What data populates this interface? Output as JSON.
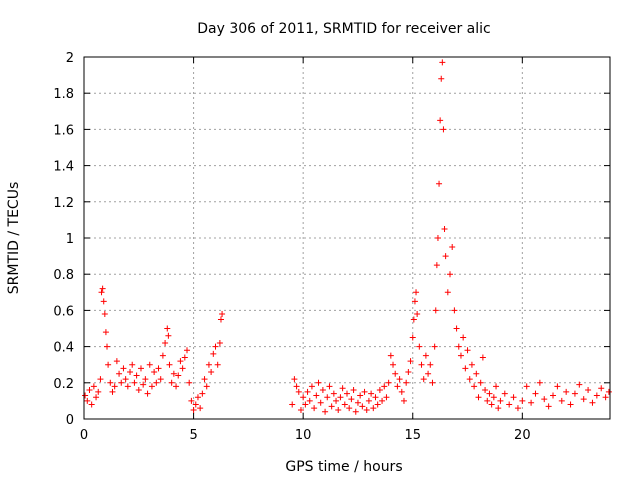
{
  "chart_data": {
    "type": "scatter",
    "title": "Day 306 of 2011, SRMTID for receiver alic",
    "xlabel": "GPS time / hours",
    "ylabel": "SRMTID / TECUs",
    "xlim": [
      0,
      24
    ],
    "ylim": [
      0,
      2
    ],
    "x_ticks": [
      0,
      5,
      10,
      15,
      20
    ],
    "x_tick_labels": [
      "0",
      "5",
      "10",
      "15",
      "20"
    ],
    "y_ticks": [
      0,
      0.2,
      0.4,
      0.6,
      0.8,
      1,
      1.2,
      1.4,
      1.6,
      1.8,
      2
    ],
    "y_tick_labels": [
      "0",
      "0.2",
      "0.4",
      "0.6",
      "0.8",
      "1",
      "1.2",
      "1.4",
      "1.6",
      "1.8",
      "2"
    ],
    "grid": true,
    "marker": "+",
    "series_color": "#ff0000",
    "series": [
      {
        "name": "SRMTID",
        "points": [
          [
            0.05,
            0.13
          ],
          [
            0.15,
            0.1
          ],
          [
            0.25,
            0.16
          ],
          [
            0.35,
            0.08
          ],
          [
            0.45,
            0.18
          ],
          [
            0.55,
            0.12
          ],
          [
            0.65,
            0.15
          ],
          [
            0.75,
            0.22
          ],
          [
            0.8,
            0.7
          ],
          [
            0.85,
            0.72
          ],
          [
            0.9,
            0.65
          ],
          [
            0.95,
            0.58
          ],
          [
            1.0,
            0.48
          ],
          [
            1.05,
            0.4
          ],
          [
            1.1,
            0.3
          ],
          [
            1.2,
            0.2
          ],
          [
            1.3,
            0.15
          ],
          [
            1.4,
            0.18
          ],
          [
            1.5,
            0.32
          ],
          [
            1.6,
            0.25
          ],
          [
            1.7,
            0.2
          ],
          [
            1.8,
            0.28
          ],
          [
            1.9,
            0.22
          ],
          [
            2.0,
            0.18
          ],
          [
            2.1,
            0.26
          ],
          [
            2.2,
            0.3
          ],
          [
            2.3,
            0.2
          ],
          [
            2.4,
            0.24
          ],
          [
            2.5,
            0.16
          ],
          [
            2.6,
            0.28
          ],
          [
            2.7,
            0.19
          ],
          [
            2.8,
            0.22
          ],
          [
            2.9,
            0.14
          ],
          [
            3.0,
            0.3
          ],
          [
            3.1,
            0.18
          ],
          [
            3.2,
            0.26
          ],
          [
            3.3,
            0.2
          ],
          [
            3.4,
            0.28
          ],
          [
            3.5,
            0.22
          ],
          [
            3.6,
            0.35
          ],
          [
            3.7,
            0.42
          ],
          [
            3.8,
            0.5
          ],
          [
            3.85,
            0.46
          ],
          [
            3.9,
            0.3
          ],
          [
            4.0,
            0.2
          ],
          [
            4.1,
            0.25
          ],
          [
            4.2,
            0.18
          ],
          [
            4.3,
            0.24
          ],
          [
            4.4,
            0.32
          ],
          [
            4.5,
            0.28
          ],
          [
            4.6,
            0.34
          ],
          [
            4.7,
            0.38
          ],
          [
            4.8,
            0.2
          ],
          [
            4.9,
            0.1
          ],
          [
            5.0,
            0.05
          ],
          [
            5.1,
            0.08
          ],
          [
            5.2,
            0.12
          ],
          [
            5.3,
            0.06
          ],
          [
            5.4,
            0.14
          ],
          [
            5.5,
            0.22
          ],
          [
            5.6,
            0.18
          ],
          [
            5.7,
            0.3
          ],
          [
            5.8,
            0.26
          ],
          [
            5.9,
            0.36
          ],
          [
            6.0,
            0.4
          ],
          [
            6.1,
            0.3
          ],
          [
            6.2,
            0.42
          ],
          [
            6.25,
            0.55
          ],
          [
            6.3,
            0.58
          ],
          [
            9.5,
            0.08
          ],
          [
            9.6,
            0.22
          ],
          [
            9.7,
            0.18
          ],
          [
            9.8,
            0.15
          ],
          [
            9.9,
            0.05
          ],
          [
            10.0,
            0.12
          ],
          [
            10.1,
            0.08
          ],
          [
            10.2,
            0.15
          ],
          [
            10.3,
            0.1
          ],
          [
            10.4,
            0.18
          ],
          [
            10.5,
            0.06
          ],
          [
            10.6,
            0.13
          ],
          [
            10.7,
            0.2
          ],
          [
            10.8,
            0.09
          ],
          [
            10.9,
            0.16
          ],
          [
            11.0,
            0.04
          ],
          [
            11.1,
            0.12
          ],
          [
            11.2,
            0.18
          ],
          [
            11.3,
            0.07
          ],
          [
            11.4,
            0.14
          ],
          [
            11.5,
            0.1
          ],
          [
            11.6,
            0.05
          ],
          [
            11.7,
            0.12
          ],
          [
            11.8,
            0.17
          ],
          [
            11.9,
            0.08
          ],
          [
            12.0,
            0.14
          ],
          [
            12.1,
            0.06
          ],
          [
            12.2,
            0.11
          ],
          [
            12.3,
            0.16
          ],
          [
            12.4,
            0.04
          ],
          [
            12.5,
            0.09
          ],
          [
            12.6,
            0.13
          ],
          [
            12.7,
            0.07
          ],
          [
            12.8,
            0.15
          ],
          [
            12.9,
            0.05
          ],
          [
            13.0,
            0.1
          ],
          [
            13.1,
            0.14
          ],
          [
            13.2,
            0.06
          ],
          [
            13.3,
            0.12
          ],
          [
            13.4,
            0.08
          ],
          [
            13.5,
            0.16
          ],
          [
            13.6,
            0.1
          ],
          [
            13.7,
            0.18
          ],
          [
            13.8,
            0.12
          ],
          [
            13.9,
            0.2
          ],
          [
            14.0,
            0.35
          ],
          [
            14.1,
            0.3
          ],
          [
            14.2,
            0.25
          ],
          [
            14.3,
            0.18
          ],
          [
            14.4,
            0.22
          ],
          [
            14.5,
            0.15
          ],
          [
            14.6,
            0.1
          ],
          [
            14.7,
            0.2
          ],
          [
            14.8,
            0.26
          ],
          [
            14.9,
            0.32
          ],
          [
            15.0,
            0.45
          ],
          [
            15.05,
            0.55
          ],
          [
            15.1,
            0.65
          ],
          [
            15.15,
            0.7
          ],
          [
            15.2,
            0.58
          ],
          [
            15.3,
            0.4
          ],
          [
            15.4,
            0.3
          ],
          [
            15.5,
            0.22
          ],
          [
            15.6,
            0.35
          ],
          [
            15.7,
            0.25
          ],
          [
            15.8,
            0.3
          ],
          [
            15.9,
            0.2
          ],
          [
            16.0,
            0.4
          ],
          [
            16.05,
            0.6
          ],
          [
            16.1,
            0.85
          ],
          [
            16.15,
            1.0
          ],
          [
            16.2,
            1.3
          ],
          [
            16.25,
            1.65
          ],
          [
            16.3,
            1.88
          ],
          [
            16.35,
            1.97
          ],
          [
            16.4,
            1.6
          ],
          [
            16.45,
            1.05
          ],
          [
            16.5,
            0.9
          ],
          [
            16.6,
            0.7
          ],
          [
            16.7,
            0.8
          ],
          [
            16.8,
            0.95
          ],
          [
            16.9,
            0.6
          ],
          [
            17.0,
            0.5
          ],
          [
            17.1,
            0.4
          ],
          [
            17.2,
            0.35
          ],
          [
            17.3,
            0.45
          ],
          [
            17.4,
            0.28
          ],
          [
            17.5,
            0.38
          ],
          [
            17.6,
            0.22
          ],
          [
            17.7,
            0.3
          ],
          [
            17.8,
            0.18
          ],
          [
            17.9,
            0.25
          ],
          [
            18.0,
            0.12
          ],
          [
            18.1,
            0.2
          ],
          [
            18.2,
            0.34
          ],
          [
            18.3,
            0.16
          ],
          [
            18.4,
            0.1
          ],
          [
            18.5,
            0.14
          ],
          [
            18.6,
            0.08
          ],
          [
            18.7,
            0.12
          ],
          [
            18.8,
            0.18
          ],
          [
            18.9,
            0.06
          ],
          [
            19.0,
            0.1
          ],
          [
            19.2,
            0.14
          ],
          [
            19.4,
            0.08
          ],
          [
            19.6,
            0.12
          ],
          [
            19.8,
            0.06
          ],
          [
            20.0,
            0.1
          ],
          [
            20.2,
            0.18
          ],
          [
            20.4,
            0.09
          ],
          [
            20.6,
            0.14
          ],
          [
            20.8,
            0.2
          ],
          [
            21.0,
            0.11
          ],
          [
            21.2,
            0.07
          ],
          [
            21.4,
            0.13
          ],
          [
            21.6,
            0.18
          ],
          [
            21.8,
            0.1
          ],
          [
            22.0,
            0.15
          ],
          [
            22.2,
            0.08
          ],
          [
            22.4,
            0.14
          ],
          [
            22.6,
            0.19
          ],
          [
            22.8,
            0.11
          ],
          [
            23.0,
            0.16
          ],
          [
            23.2,
            0.09
          ],
          [
            23.4,
            0.13
          ],
          [
            23.6,
            0.17
          ],
          [
            23.8,
            0.12
          ],
          [
            23.95,
            0.15
          ]
        ]
      }
    ]
  }
}
